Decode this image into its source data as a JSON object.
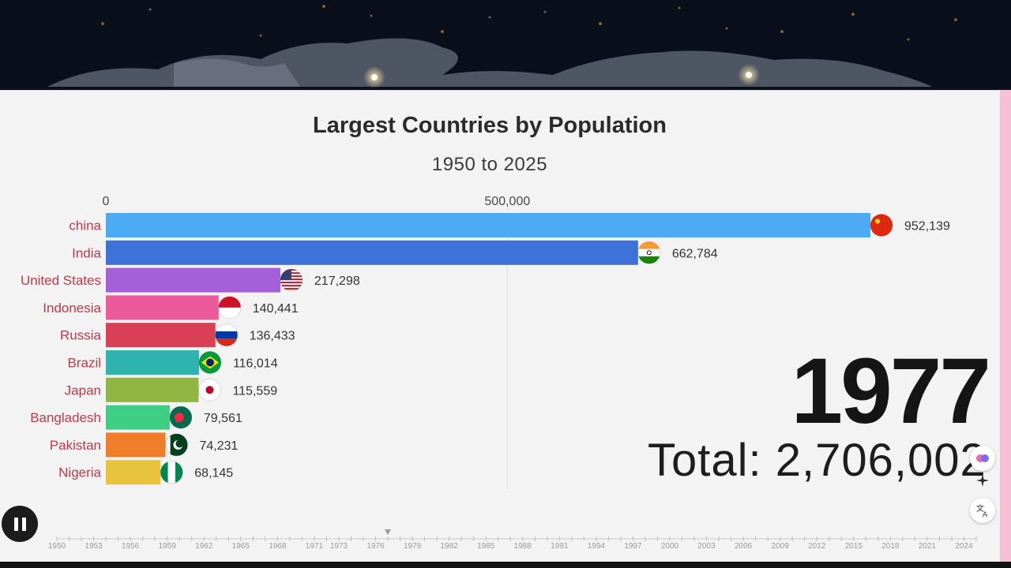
{
  "chart_data": {
    "type": "bar",
    "orientation": "horizontal",
    "title": "Largest Countries by Population",
    "subtitle": "1950 to 2025",
    "axis_tick_labels": [
      "0",
      "500,000"
    ],
    "axis_ticks": [
      0,
      500000
    ],
    "xlim": [
      0,
      1000000
    ],
    "categories": [
      "china",
      "India",
      "United States",
      "Indonesia",
      "Russia",
      "Brazil",
      "Japan",
      "Bangladesh",
      "Pakistan",
      "Nigeria"
    ],
    "values": [
      952139,
      662784,
      217298,
      140441,
      136433,
      116014,
      115559,
      79561,
      74231,
      68145
    ],
    "value_labels": [
      "952,139",
      "662,784",
      "217,298",
      "140,441",
      "136,433",
      "116,014",
      "115,559",
      "79,561",
      "74,231",
      "68,145"
    ],
    "colors": [
      "#4daaf5",
      "#3d72d8",
      "#a55fd8",
      "#ec5a9c",
      "#d94055",
      "#2fb3b0",
      "#8fb542",
      "#3ecf85",
      "#ef7d2a",
      "#e8c43c"
    ],
    "flag_icons": [
      "china-flag-icon",
      "india-flag-icon",
      "usa-flag-icon",
      "indonesia-flag-icon",
      "russia-flag-icon",
      "brazil-flag-icon",
      "japan-flag-icon",
      "bangladesh-flag-icon",
      "pakistan-flag-icon",
      "nigeria-flag-icon"
    ],
    "label_color": "#c0394b",
    "grid": true
  },
  "year": "1977",
  "total": "Total: 2,706,002",
  "timeline": {
    "labels": [
      "1950",
      "1953",
      "1956",
      "1959",
      "1962",
      "1965",
      "1968",
      "1971",
      "1973",
      "1976",
      "1979",
      "1982",
      "1985",
      "1988",
      "1991",
      "1994",
      "1997",
      "2000",
      "2003",
      "2006",
      "2009",
      "2012",
      "2015",
      "2018",
      "2021",
      "2024"
    ],
    "range": [
      1950,
      2025
    ],
    "current": 1977
  },
  "controls": {
    "pause_icon": "pause-icon",
    "side_icons": [
      "brain-icon",
      "sparkle-icon",
      "translate-icon"
    ]
  }
}
